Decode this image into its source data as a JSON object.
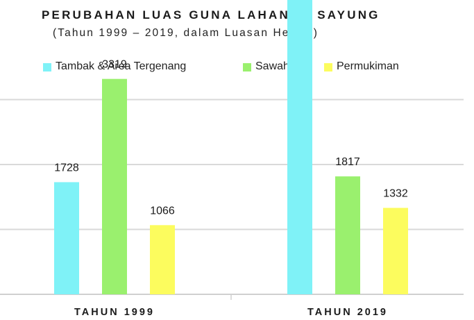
{
  "chart_data": {
    "type": "bar",
    "title": "PERUBAHAN LUAS GUNA LAHAN DI SAYUNG",
    "subtitle": "(Tahun 1999 – 2019, dalam Luasan Hektar)",
    "categories": [
      "TAHUN 1999",
      "TAHUN 2019"
    ],
    "series": [
      {
        "name": "Tambak & Area Tergenang",
        "color": "#7ff2f7",
        "values": [
          1728,
          4800
        ]
      },
      {
        "name": "Sawah",
        "color": "#9af06e",
        "values": [
          3319,
          1817
        ]
      },
      {
        "name": "Permukiman",
        "color": "#fcfc5e",
        "values": [
          1066,
          1332
        ]
      }
    ],
    "ylim": [
      0,
      6000
    ],
    "grid": true,
    "legend_position": "top",
    "xlabel": "",
    "ylabel": ""
  }
}
